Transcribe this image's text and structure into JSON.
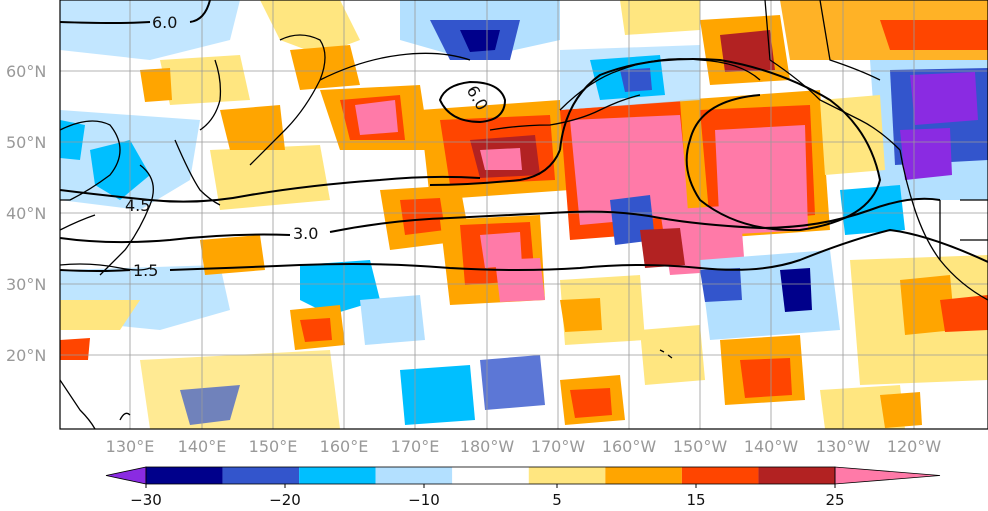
{
  "map": {
    "lat_labels": [
      "60°N",
      "50°N",
      "40°N",
      "30°N",
      "20°N"
    ],
    "lon_labels": [
      "130°E",
      "140°E",
      "150°E",
      "160°E",
      "170°E",
      "180°W",
      "170°W",
      "160°W",
      "150°W",
      "140°W",
      "130°W",
      "120°W"
    ],
    "contour_labels": [
      "6.0",
      "6.0",
      "4.5",
      "3.0",
      "1.5"
    ],
    "colors": {
      "land_outline": "#000000",
      "contour": "#000000",
      "grid": "#9a9a9a"
    },
    "fill_colors": {
      "purple": "#8a2be2",
      "navy": "#00008b",
      "royal": "#3355cc",
      "cyan": "#00bfff",
      "lightblue": "#b3e0ff",
      "yellow": "#ffe680",
      "orange": "#ffa500",
      "redorange": "#ff4500",
      "darkred": "#b22222",
      "pink": "#ff7aa8"
    }
  },
  "colorbar": {
    "tick_labels": [
      "−30",
      "−20",
      "−10",
      "5",
      "15",
      "25"
    ],
    "colors": [
      "#8a2be2",
      "#00008b",
      "#3355cc",
      "#00bfff",
      "#b3e0ff",
      "#ffffff",
      "#ffe680",
      "#ffa500",
      "#ff4500",
      "#b22222",
      "#ff7aa8"
    ]
  }
}
